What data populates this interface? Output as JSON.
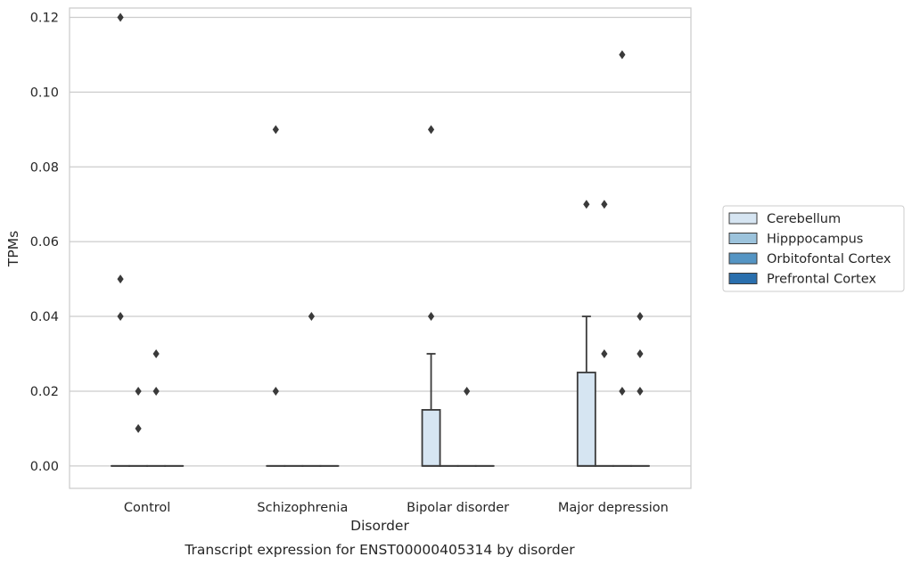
{
  "chart_data": {
    "type": "box",
    "title": "",
    "caption": "Transcript expression for ENST00000405314 by disorder",
    "xlabel": "Disorder",
    "ylabel": "TPMs",
    "ylim": [
      -0.006,
      0.1225
    ],
    "yticks": [
      0.0,
      0.02,
      0.04,
      0.06,
      0.08,
      0.1,
      0.12
    ],
    "ytick_labels": [
      "0.00",
      "0.02",
      "0.04",
      "0.06",
      "0.08",
      "0.10",
      "0.12"
    ],
    "grid": "horizontal",
    "legend_position": "right",
    "categories": [
      "Control",
      "Schizophrenia",
      "Bipolar disorder",
      "Major depression"
    ],
    "series": [
      {
        "name": "Cerebellum",
        "color": "#d6e5f2",
        "boxes": [
          {
            "q1": 0.0,
            "median": 0.0,
            "q3": 0.0,
            "whisker_low": 0.0,
            "whisker_high": 0.0,
            "outliers": [
              0.12,
              0.05,
              0.04
            ]
          },
          {
            "q1": 0.0,
            "median": 0.0,
            "q3": 0.0,
            "whisker_low": 0.0,
            "whisker_high": 0.0,
            "outliers": [
              0.09,
              0.02
            ]
          },
          {
            "q1": 0.0,
            "median": 0.0,
            "q3": 0.015,
            "whisker_low": 0.0,
            "whisker_high": 0.03,
            "outliers": [
              0.04,
              0.09
            ]
          },
          {
            "q1": 0.0,
            "median": 0.0,
            "q3": 0.025,
            "whisker_low": 0.0,
            "whisker_high": 0.04,
            "outliers": [
              0.07
            ]
          }
        ]
      },
      {
        "name": "Hipppocampus",
        "color": "#9cc3dc",
        "boxes": [
          {
            "q1": 0.0,
            "median": 0.0,
            "q3": 0.0,
            "whisker_low": 0.0,
            "whisker_high": 0.0,
            "outliers": [
              0.01,
              0.02
            ]
          },
          {
            "q1": 0.0,
            "median": 0.0,
            "q3": 0.0,
            "whisker_low": 0.0,
            "whisker_high": 0.0,
            "outliers": []
          },
          {
            "q1": 0.0,
            "median": 0.0,
            "q3": 0.0,
            "whisker_low": 0.0,
            "whisker_high": 0.0,
            "outliers": []
          },
          {
            "q1": 0.0,
            "median": 0.0,
            "q3": 0.0,
            "whisker_low": 0.0,
            "whisker_high": 0.0,
            "outliers": [
              0.07,
              0.03
            ]
          }
        ]
      },
      {
        "name": "Orbitofontal Cortex",
        "color": "#5595c4",
        "boxes": [
          {
            "q1": 0.0,
            "median": 0.0,
            "q3": 0.0,
            "whisker_low": 0.0,
            "whisker_high": 0.0,
            "outliers": [
              0.03,
              0.02
            ]
          },
          {
            "q1": 0.0,
            "median": 0.0,
            "q3": 0.0,
            "whisker_low": 0.0,
            "whisker_high": 0.0,
            "outliers": [
              0.04
            ]
          },
          {
            "q1": 0.0,
            "median": 0.0,
            "q3": 0.0,
            "whisker_low": 0.0,
            "whisker_high": 0.0,
            "outliers": [
              0.02
            ]
          },
          {
            "q1": 0.0,
            "median": 0.0,
            "q3": 0.0,
            "whisker_low": 0.0,
            "whisker_high": 0.0,
            "outliers": [
              0.11,
              0.02
            ]
          }
        ]
      },
      {
        "name": "Prefrontal Cortex",
        "color": "#2a6fad",
        "boxes": [
          {
            "q1": 0.0,
            "median": 0.0,
            "q3": 0.0,
            "whisker_low": 0.0,
            "whisker_high": 0.0,
            "outliers": []
          },
          {
            "q1": 0.0,
            "median": 0.0,
            "q3": 0.0,
            "whisker_low": 0.0,
            "whisker_high": 0.0,
            "outliers": []
          },
          {
            "q1": 0.0,
            "median": 0.0,
            "q3": 0.0,
            "whisker_low": 0.0,
            "whisker_high": 0.0,
            "outliers": []
          },
          {
            "q1": 0.0,
            "median": 0.0,
            "q3": 0.0,
            "whisker_low": 0.0,
            "whisker_high": 0.0,
            "outliers": [
              0.04,
              0.03,
              0.02
            ]
          }
        ]
      }
    ]
  }
}
